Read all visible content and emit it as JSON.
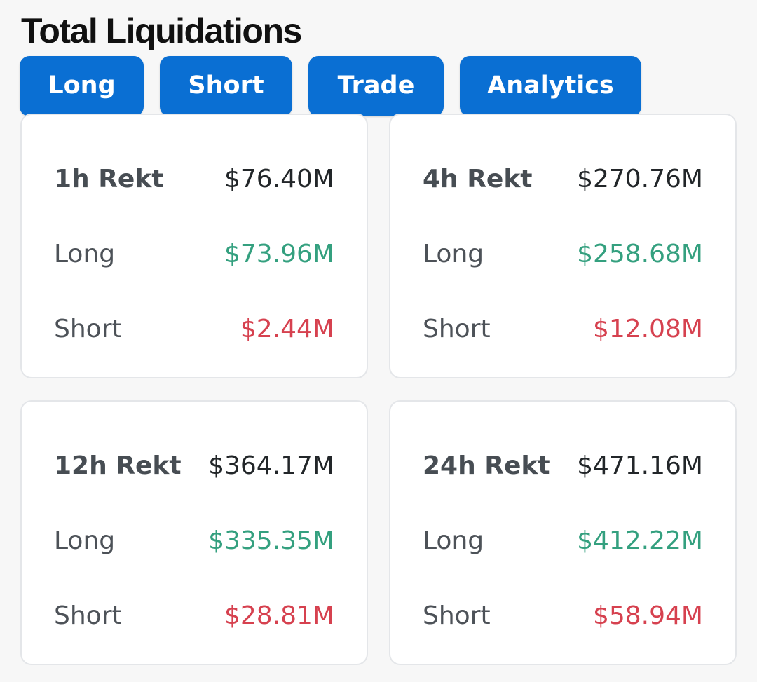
{
  "colors": {
    "tab_bg": "#0a6fd3",
    "long_value": "#34a07f",
    "short_value": "#d6414f",
    "background": "#f7f7f7",
    "card_bg": "#ffffff"
  },
  "page_title": "Total Liquidations",
  "tabs": [
    {
      "label": "Long"
    },
    {
      "label": "Short"
    },
    {
      "label": "Trade"
    },
    {
      "label": "Analytics"
    }
  ],
  "cards": [
    {
      "period_label": "1h Rekt",
      "total": "$76.40M",
      "long_label": "Long",
      "long_value": "$73.96M",
      "short_label": "Short",
      "short_value": "$2.44M"
    },
    {
      "period_label": "4h Rekt",
      "total": "$270.76M",
      "long_label": "Long",
      "long_value": "$258.68M",
      "short_label": "Short",
      "short_value": "$12.08M"
    },
    {
      "period_label": "12h Rekt",
      "total": "$364.17M",
      "long_label": "Long",
      "long_value": "$335.35M",
      "short_label": "Short",
      "short_value": "$28.81M"
    },
    {
      "period_label": "24h Rekt",
      "total": "$471.16M",
      "long_label": "Long",
      "long_value": "$412.22M",
      "short_label": "Short",
      "short_value": "$58.94M"
    }
  ]
}
